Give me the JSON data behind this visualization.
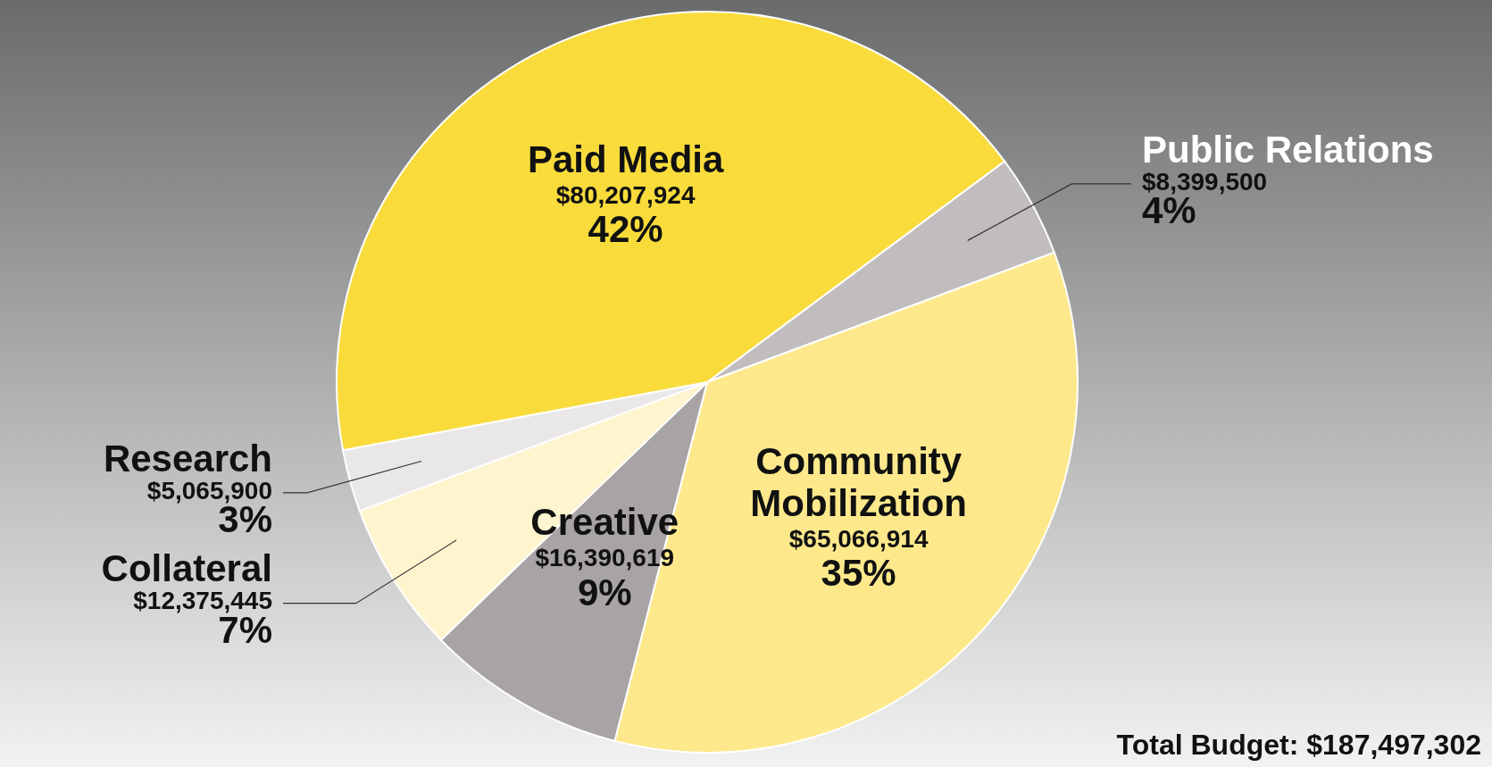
{
  "chart_data": {
    "type": "pie",
    "categories": [
      "Public Relations",
      "Community Mobilization",
      "Creative",
      "Collateral",
      "Research",
      "Paid Media"
    ],
    "values": [
      8399500,
      65066914,
      16390619,
      12375445,
      5065900,
      80207924
    ],
    "colors": [
      "#c1bdbe",
      "#fde98c",
      "#a8a3a5",
      "#fef4cd",
      "#e9e7e7",
      "#f9dc3c"
    ],
    "value_labels": [
      "$8,399,500\n4%",
      "$65,066,914\n35%",
      "$16,390,619\n9%",
      "$12,375,445\n7%",
      "$5,065,900\n3%",
      "$80,207,924\n42%"
    ],
    "annotations": [
      "Total Budget: $187,497,302"
    ]
  }
}
